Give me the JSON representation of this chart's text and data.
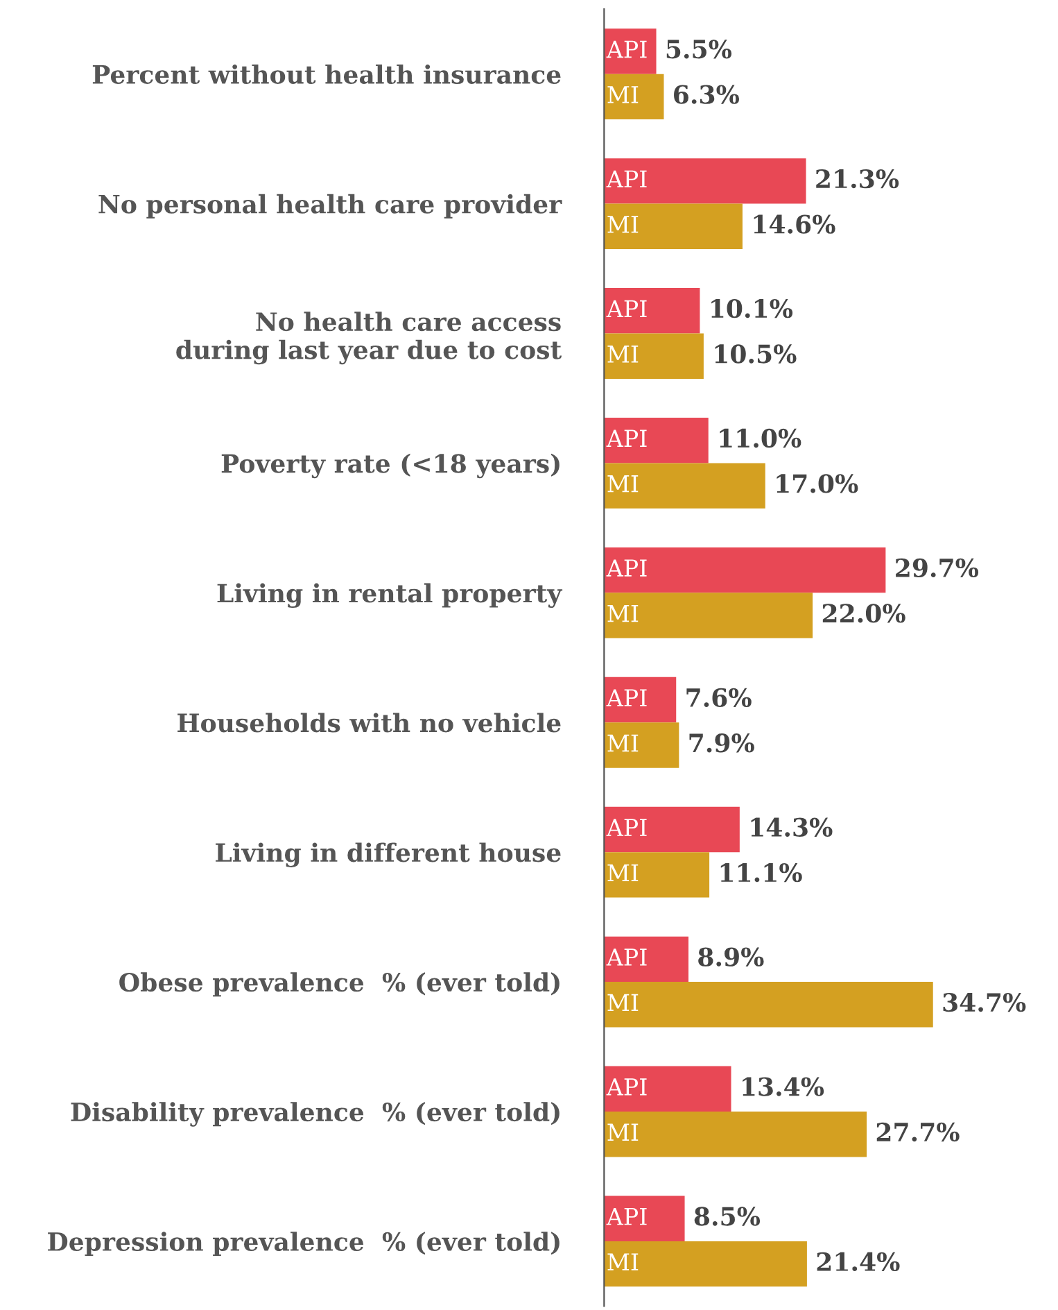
{
  "chart_data": {
    "type": "bar",
    "orientation": "horizontal",
    "categories": [
      "Percent without health insurance",
      "No personal health care provider",
      "No health care access\nduring last year due to cost",
      "Poverty rate (<18 years)",
      "Living in rental property",
      "Households with no vehicle",
      "Living in different house",
      "Obese prevalence  % (ever told)",
      "Disability prevalence  % (ever told)",
      "Depression prevalence  % (ever told)"
    ],
    "series": [
      {
        "name": "API",
        "color": "#e84855",
        "values": [
          5.5,
          21.3,
          10.1,
          11.0,
          29.7,
          7.6,
          14.3,
          8.9,
          13.4,
          8.5
        ],
        "value_labels": [
          "5.5%",
          "21.3%",
          "10.1%",
          "11.0%",
          "29.7%",
          "7.6%",
          "14.3%",
          "8.9%",
          "13.4%",
          "8.5%"
        ]
      },
      {
        "name": "MI",
        "color": "#d4a021",
        "values": [
          6.3,
          14.6,
          10.5,
          17.0,
          22.0,
          7.9,
          11.1,
          34.7,
          27.7,
          21.4
        ],
        "value_labels": [
          "6.3%",
          "14.6%",
          "10.5%",
          "17.0%",
          "22.0%",
          "7.9%",
          "11.1%",
          "34.7%",
          "27.7%",
          "21.4%"
        ]
      }
    ],
    "tick_labels": "y",
    "grid": false,
    "legend": false
  }
}
